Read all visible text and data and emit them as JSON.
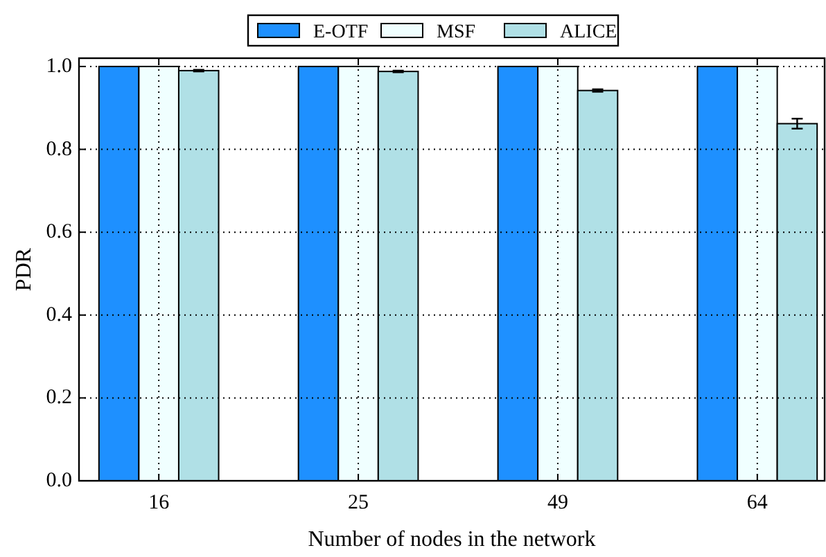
{
  "chart_data": {
    "type": "bar",
    "xlabel": "Number of nodes in the network",
    "ylabel": "PDR",
    "categories": [
      "16",
      "25",
      "49",
      "64"
    ],
    "series": [
      {
        "name": "E-OTF",
        "color": "#1e90ff",
        "values": [
          1.0,
          1.0,
          1.0,
          1.0
        ]
      },
      {
        "name": "MSF",
        "color": "#f0ffff",
        "values": [
          1.0,
          1.0,
          1.0,
          1.0
        ]
      },
      {
        "name": "ALICE",
        "color": "#b0e0e6",
        "values": [
          0.99,
          0.988,
          0.942,
          0.862
        ],
        "errors": [
          0.002,
          0.002,
          0.003,
          0.012
        ]
      }
    ],
    "ylim": [
      0,
      1.02
    ],
    "yticks": [
      {
        "value": 0,
        "label": "0.0"
      },
      {
        "value": 0.2,
        "label": "0.2"
      },
      {
        "value": 0.4,
        "label": "0.4"
      },
      {
        "value": 0.6,
        "label": "0.6"
      },
      {
        "value": 0.8,
        "label": "0.8"
      },
      {
        "value": 1.0,
        "label": "1.0"
      }
    ],
    "grid": true,
    "legend": "top"
  }
}
